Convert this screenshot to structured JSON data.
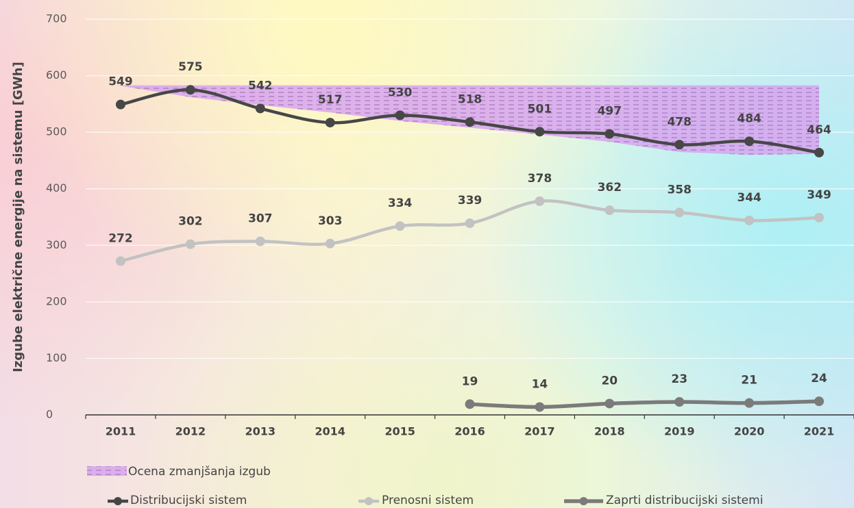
{
  "chart_data": {
    "type": "line",
    "y_label": "Izgube električne energije na sistemu [GWh]",
    "categories": [
      "2011",
      "2012",
      "2013",
      "2014",
      "2015",
      "2016",
      "2017",
      "2018",
      "2019",
      "2020",
      "2021"
    ],
    "ylim": [
      0,
      700
    ],
    "yticks": [
      0,
      100,
      200,
      300,
      400,
      500,
      600,
      700
    ],
    "grid": true,
    "band": {
      "name": "Ocena zmanjšanja izgub",
      "color": "#d7a5ef",
      "high": [
        583,
        583,
        583,
        583,
        583,
        583,
        583,
        583,
        583,
        583,
        583
      ],
      "low": [
        583,
        562,
        548,
        535,
        520,
        508,
        496,
        483,
        465,
        460,
        462
      ]
    },
    "series": [
      {
        "name": "Distribucijski sistem",
        "color": "#474747",
        "values": [
          549,
          575,
          542,
          517,
          530,
          518,
          501,
          497,
          478,
          484,
          464
        ]
      },
      {
        "name": "Prenosni sistem",
        "color": "#c2c2c2",
        "values": [
          272,
          302,
          307,
          303,
          334,
          339,
          378,
          362,
          358,
          344,
          349
        ]
      },
      {
        "name": "Zaprti distribucijski sistemi",
        "color": "#7b7b7b",
        "values": [
          null,
          null,
          null,
          null,
          null,
          19,
          14,
          20,
          23,
          21,
          24
        ]
      }
    ]
  }
}
